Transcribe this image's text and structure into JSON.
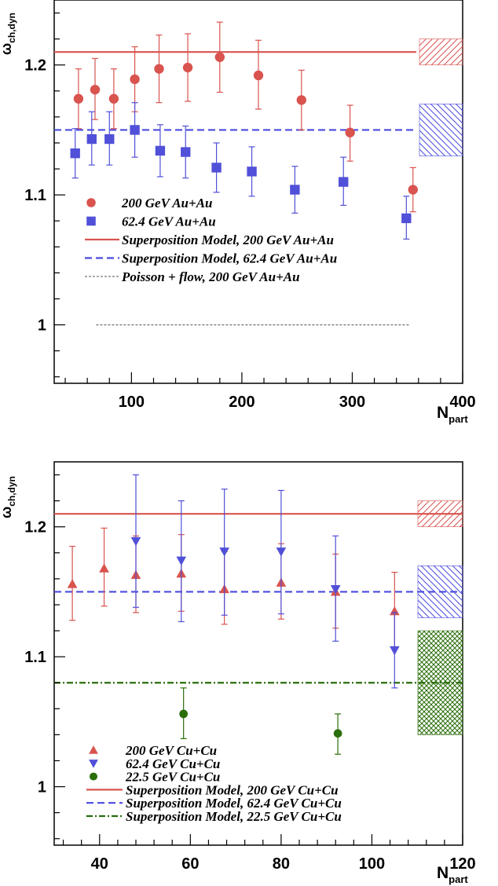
{
  "chart_data": [
    {
      "type": "scatter",
      "ylabel": "ω",
      "ylabel_sub": "ch,dyn",
      "xlabel": "N",
      "xlabel_sub": "part",
      "xlim": [
        30,
        400
      ],
      "ylim": [
        0.955,
        1.25
      ],
      "x_ticks": [
        100,
        200,
        300,
        400
      ],
      "y_ticks": [
        1,
        1.1,
        1.2
      ],
      "series": [
        {
          "name": "200 GeV Au+Au",
          "marker": "circle",
          "color": "#d9534f",
          "points": [
            {
              "x": 52,
              "y": 1.174,
              "lo": 1.151,
              "hi": 1.197
            },
            {
              "x": 67,
              "y": 1.181,
              "lo": 1.158,
              "hi": 1.205
            },
            {
              "x": 84,
              "y": 1.174,
              "lo": 1.151,
              "hi": 1.197
            },
            {
              "x": 103,
              "y": 1.189,
              "lo": 1.164,
              "hi": 1.214
            },
            {
              "x": 125,
              "y": 1.197,
              "lo": 1.171,
              "hi": 1.223
            },
            {
              "x": 151,
              "y": 1.198,
              "lo": 1.172,
              "hi": 1.224
            },
            {
              "x": 180,
              "y": 1.206,
              "lo": 1.179,
              "hi": 1.233
            },
            {
              "x": 215,
              "y": 1.192,
              "lo": 1.166,
              "hi": 1.219
            },
            {
              "x": 254,
              "y": 1.173,
              "lo": 1.15,
              "hi": 1.196
            },
            {
              "x": 298,
              "y": 1.148,
              "lo": 1.126,
              "hi": 1.169
            },
            {
              "x": 355,
              "y": 1.104,
              "lo": 1.087,
              "hi": 1.121
            }
          ]
        },
        {
          "name": "62.4 GeV Au+Au",
          "marker": "square",
          "color": "#5050d8",
          "points": [
            {
              "x": 49,
              "y": 1.132,
              "lo": 1.113,
              "hi": 1.151
            },
            {
              "x": 64,
              "y": 1.143,
              "lo": 1.123,
              "hi": 1.164
            },
            {
              "x": 80,
              "y": 1.143,
              "lo": 1.123,
              "hi": 1.164
            },
            {
              "x": 103,
              "y": 1.15,
              "lo": 1.129,
              "hi": 1.171
            },
            {
              "x": 126,
              "y": 1.134,
              "lo": 1.114,
              "hi": 1.154
            },
            {
              "x": 149,
              "y": 1.133,
              "lo": 1.113,
              "hi": 1.153
            },
            {
              "x": 177,
              "y": 1.121,
              "lo": 1.102,
              "hi": 1.14
            },
            {
              "x": 209,
              "y": 1.118,
              "lo": 1.099,
              "hi": 1.137
            },
            {
              "x": 248,
              "y": 1.104,
              "lo": 1.086,
              "hi": 1.122
            },
            {
              "x": 292,
              "y": 1.11,
              "lo": 1.092,
              "hi": 1.129
            },
            {
              "x": 349,
              "y": 1.082,
              "lo": 1.066,
              "hi": 1.099
            }
          ]
        }
      ],
      "lines": [
        {
          "name": "Superposition Model, 200 GeV Au+Au",
          "style": "solid",
          "color": "#d9534f",
          "y": 1.21,
          "x": [
            30,
            358
          ]
        },
        {
          "name": "Superposition Model, 62.4 GeV Au+Au",
          "style": "dashed",
          "color": "#4a4ae0",
          "y": 1.15,
          "x": [
            30,
            358
          ]
        },
        {
          "name": "Poisson + flow, 200 GeV Au+Au",
          "style": "dotted",
          "color": "#777777",
          "y": 1.0,
          "x": [
            68,
            352
          ]
        }
      ],
      "bands": [
        {
          "color": "#d9534f",
          "hatch": "forward",
          "y0": 1.2,
          "y1": 1.22
        },
        {
          "color": "#4a4ae0",
          "hatch": "backward",
          "y0": 1.13,
          "y1": 1.17
        }
      ],
      "legend": {
        "placement": "lower-left",
        "entries": [
          {
            "label": "200 GeV Au+Au",
            "kind": "circle",
            "color": "#d9534f"
          },
          {
            "label": "62.4 GeV Au+Au",
            "kind": "square",
            "color": "#5050d8"
          },
          {
            "label": "Superposition Model, 200 GeV Au+Au",
            "kind": "solid",
            "color": "#d9534f"
          },
          {
            "label": "Superposition Model, 62.4 GeV Au+Au",
            "kind": "dashed",
            "color": "#4a4ae0"
          },
          {
            "label": "Poisson + flow, 200 GeV Au+Au",
            "kind": "dotted",
            "color": "#777777"
          }
        ]
      }
    },
    {
      "type": "scatter",
      "ylabel": "ω",
      "ylabel_sub": "ch,dyn",
      "xlabel": "N",
      "xlabel_sub": "part",
      "xlim": [
        30,
        120
      ],
      "ylim": [
        0.955,
        1.25
      ],
      "x_ticks": [
        40,
        60,
        80,
        100,
        120
      ],
      "y_ticks": [
        1,
        1.1,
        1.2
      ],
      "series": [
        {
          "name": "200 GeV Cu+Cu",
          "marker": "triangle-up",
          "color": "#d9534f",
          "points": [
            {
              "x": 34,
              "y": 1.156,
              "lo": 1.128,
              "hi": 1.185
            },
            {
              "x": 41,
              "y": 1.168,
              "lo": 1.139,
              "hi": 1.199
            },
            {
              "x": 48,
              "y": 1.163,
              "lo": 1.134,
              "hi": 1.193
            },
            {
              "x": 58,
              "y": 1.164,
              "lo": 1.135,
              "hi": 1.194
            },
            {
              "x": 67.5,
              "y": 1.152,
              "lo": 1.125,
              "hi": 1.181
            },
            {
              "x": 80,
              "y": 1.157,
              "lo": 1.129,
              "hi": 1.187
            },
            {
              "x": 92,
              "y": 1.15,
              "lo": 1.122,
              "hi": 1.179
            },
            {
              "x": 105,
              "y": 1.135,
              "lo": 1.107,
              "hi": 1.165
            }
          ]
        },
        {
          "name": "62.4 GeV Cu+Cu",
          "marker": "triangle-down",
          "color": "#5050d8",
          "points": [
            {
              "x": 48,
              "y": 1.189,
              "lo": 1.138,
              "hi": 1.24
            },
            {
              "x": 58,
              "y": 1.174,
              "lo": 1.127,
              "hi": 1.22
            },
            {
              "x": 67.5,
              "y": 1.181,
              "lo": 1.132,
              "hi": 1.229
            },
            {
              "x": 80,
              "y": 1.181,
              "lo": 1.133,
              "hi": 1.228
            },
            {
              "x": 92,
              "y": 1.152,
              "lo": 1.112,
              "hi": 1.193
            },
            {
              "x": 105,
              "y": 1.105,
              "lo": 1.076,
              "hi": 1.134
            }
          ]
        },
        {
          "name": "22.5 GeV Cu+Cu",
          "marker": "circle",
          "color": "#2a6e0a",
          "points": [
            {
              "x": 58.5,
              "y": 1.056,
              "lo": 1.037,
              "hi": 1.076
            },
            {
              "x": 92.5,
              "y": 1.041,
              "lo": 1.025,
              "hi": 1.056
            }
          ]
        }
      ],
      "lines": [
        {
          "name": "Superposition Model, 200 GeV Cu+Cu",
          "style": "solid",
          "color": "#d9534f",
          "y": 1.21,
          "x": [
            30,
            120
          ]
        },
        {
          "name": "Superposition Model, 62.4 GeV Cu+Cu",
          "style": "dashed",
          "color": "#4a4ae0",
          "y": 1.15,
          "x": [
            30,
            120
          ]
        },
        {
          "name": "Superposition Model, 22.5 GeV Cu+Cu",
          "style": "dashdot",
          "color": "#2a6e0a",
          "y": 1.08,
          "x": [
            30,
            120
          ]
        }
      ],
      "bands": [
        {
          "color": "#d9534f",
          "hatch": "forward",
          "y0": 1.2,
          "y1": 1.22
        },
        {
          "color": "#4a4ae0",
          "hatch": "backward",
          "y0": 1.13,
          "y1": 1.17
        },
        {
          "color": "#2a6e0a",
          "hatch": "cross",
          "y0": 1.04,
          "y1": 1.12
        }
      ],
      "legend": {
        "placement": "lower-left",
        "entries": [
          {
            "label": "200 GeV Cu+Cu",
            "kind": "triangle-up",
            "color": "#d9534f"
          },
          {
            "label": "62.4 GeV Cu+Cu",
            "kind": "triangle-down",
            "color": "#5050d8"
          },
          {
            "label": "22.5 GeV Cu+Cu",
            "kind": "circle",
            "color": "#2a6e0a"
          },
          {
            "label": "Superposition Model, 200 GeV Cu+Cu",
            "kind": "solid",
            "color": "#d9534f"
          },
          {
            "label": "Superposition Model, 62.4 GeV Cu+Cu",
            "kind": "dashed",
            "color": "#4a4ae0"
          },
          {
            "label": "Superposition Model, 22.5 GeV Cu+Cu",
            "kind": "dashdot",
            "color": "#2a6e0a"
          }
        ]
      }
    }
  ]
}
